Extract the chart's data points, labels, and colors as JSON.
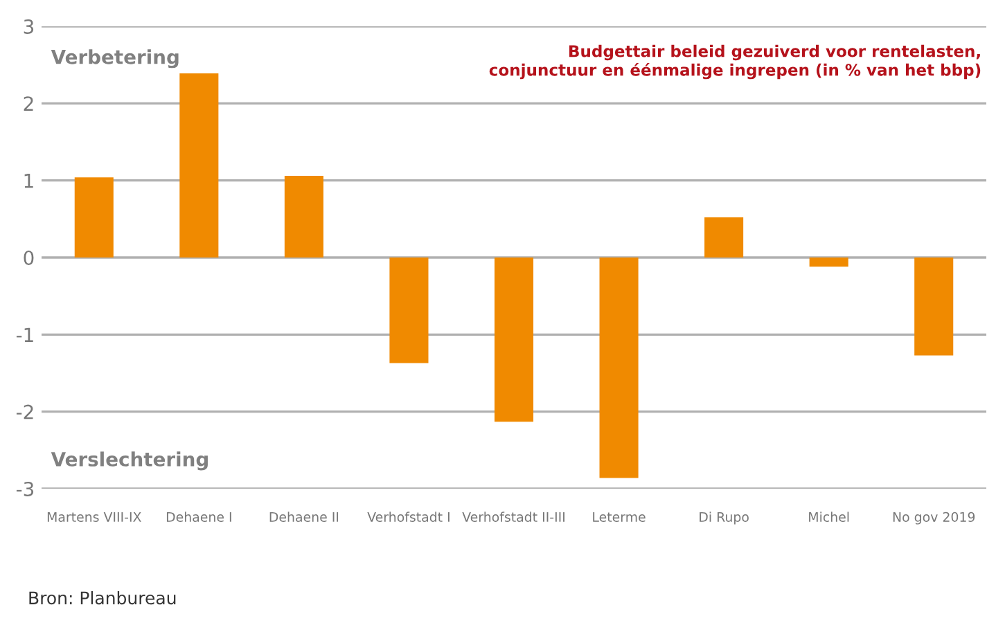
{
  "chart_data": {
    "type": "bar",
    "title": "Budgettair beleid gezuiverd voor rentelasten,\nconjunctuur en éénmalige ingrepen (in % van het bbp)",
    "categories": [
      "Martens VIII-IX",
      "Dehaene I",
      "Dehaene II",
      "Verhofstadt I",
      "Verhofstadt II-III",
      "Leterme",
      "Di Rupo",
      "Michel",
      "No gov 2019"
    ],
    "values": [
      1.04,
      2.39,
      1.06,
      -1.37,
      -2.13,
      -2.86,
      0.52,
      -0.12,
      -1.27
    ],
    "color": "#f08a00",
    "ylim": [
      -3,
      3
    ],
    "yticks": [
      -3,
      -2,
      -1,
      0,
      1,
      2,
      3
    ],
    "grid": "y",
    "annotations": [
      "Verbetering",
      "Verslechtering",
      "Bron: Planbureau"
    ]
  }
}
